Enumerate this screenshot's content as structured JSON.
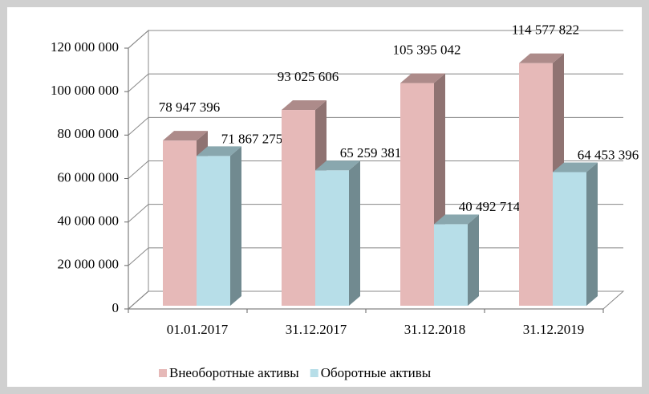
{
  "chart_data": {
    "type": "bar3d",
    "categories": [
      "01.01.2017",
      "31.12.2017",
      "31.12.2018",
      "31.12.2019"
    ],
    "series": [
      {
        "name": "Внеоборотные активы",
        "color": "#e6b9b8",
        "values": [
          78947396,
          93025606,
          105395042,
          114577822
        ],
        "value_labels": [
          "78 947 396",
          "93 025 606",
          "105 395 042",
          "114 577 822"
        ]
      },
      {
        "name": "Оборотные активы",
        "color": "#b7dee8",
        "values": [
          71867275,
          65259381,
          40492714,
          64453396
        ],
        "value_labels": [
          "71 867 275",
          "65 259 381",
          "40 492 714",
          "64 453 396"
        ]
      }
    ],
    "ylim": [
      0,
      120000000
    ],
    "yticks": [
      0,
      {
        "value": 20000000,
        "label": "20 000 000"
      },
      {
        "value": 40000000,
        "label": "40 000 000"
      },
      {
        "value": 60000000,
        "label": "60 000 000"
      },
      {
        "value": 80000000,
        "label": "80 000 000"
      },
      {
        "value": 100000000,
        "label": "100 000 000"
      },
      {
        "value": 120000000,
        "label": "120 000 000"
      }
    ],
    "grid": true,
    "legend": "bottom"
  }
}
